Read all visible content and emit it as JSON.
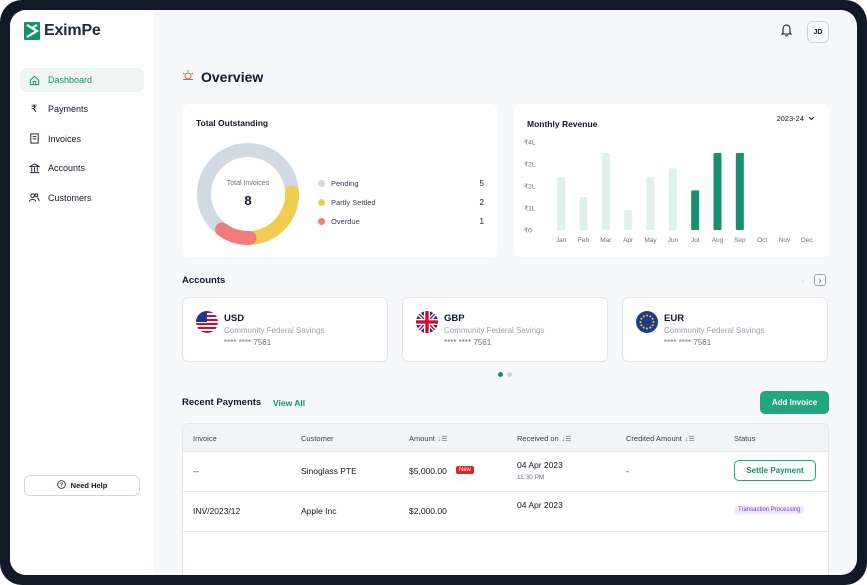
{
  "brand": {
    "name": "EximPe",
    "accent": "#10936b"
  },
  "sidebar": {
    "items": [
      {
        "label": "Dashboard",
        "icon": "home-icon",
        "active": true
      },
      {
        "label": "Payments",
        "icon": "rupee-icon",
        "active": false
      },
      {
        "label": "Invoices",
        "icon": "invoice-icon",
        "active": false
      },
      {
        "label": "Accounts",
        "icon": "bank-icon",
        "active": false
      },
      {
        "label": "Customers",
        "icon": "users-icon",
        "active": false
      }
    ],
    "help_label": "Need Help"
  },
  "topbar": {
    "avatar_initials": "JD",
    "bell_icon": "bell-icon"
  },
  "overview": {
    "title": "Overview"
  },
  "total_outstanding": {
    "title": "Total Outstanding",
    "center_label": "Total Invoices",
    "center_value": "8",
    "legend": [
      {
        "label": "Pending",
        "count": "5",
        "color": "#d1d9e3"
      },
      {
        "label": "Partly Settled",
        "count": "2",
        "color": "#f0cd4f"
      },
      {
        "label": "Overdue",
        "count": "1",
        "color": "#f27c7c"
      }
    ]
  },
  "monthly_revenue": {
    "title": "Monthly Revenue",
    "year": "2023-24"
  },
  "chart_data": {
    "type": "bar",
    "categories": [
      "Jan",
      "Feb",
      "Mar",
      "Apr",
      "May",
      "Jun",
      "Jul",
      "Aug",
      "Sep",
      "Oct",
      "Nov",
      "Dec"
    ],
    "values": [
      2.4,
      1.5,
      3.5,
      0.9,
      2.4,
      2.8,
      1.8,
      3.5,
      3.5,
      0,
      0,
      0
    ],
    "y_ticks": [
      "₹0",
      "₹1L",
      "₹2L",
      "₹2L",
      "₹4L"
    ],
    "ylim": [
      0,
      4
    ],
    "highlighted": [
      "Jul",
      "Aug",
      "Sep"
    ],
    "colors": {
      "muted": "#dff1ea",
      "highlight": "#1a8f6e"
    }
  },
  "accounts": {
    "title": "Accounts",
    "items": [
      {
        "currency": "USD",
        "bank": "Community Federal Savings",
        "number": "**** **** 7561",
        "flag": "us-flag-icon"
      },
      {
        "currency": "GBP",
        "bank": "Community Federal Savings",
        "number": "**** **** 7561",
        "flag": "uk-flag-icon"
      },
      {
        "currency": "EUR",
        "bank": "Community Federal Savings",
        "number": "**** **** 7561",
        "flag": "eu-flag-icon"
      }
    ]
  },
  "recent_payments": {
    "title": "Recent Payments",
    "view_all": "View All",
    "add_invoice": "Add Invoice",
    "columns": [
      "Invoice",
      "Customer",
      "Amount",
      "Received on",
      "Credited Amount",
      "Status"
    ],
    "rows": [
      {
        "invoice": "--",
        "customer": "Sinoglass PTE",
        "amount": "$5,000.00",
        "badge": "New",
        "date": "04 Apr 2023",
        "time": "11:30 PM",
        "credited": "-",
        "status": "Settle Payment"
      },
      {
        "invoice": "INV/2023/12",
        "customer": "Apple Inc",
        "amount": "$2,000.00",
        "badge": "",
        "date": "04 Apr 2023",
        "time": "",
        "credited": "",
        "status": "Transaction Processing"
      }
    ]
  }
}
